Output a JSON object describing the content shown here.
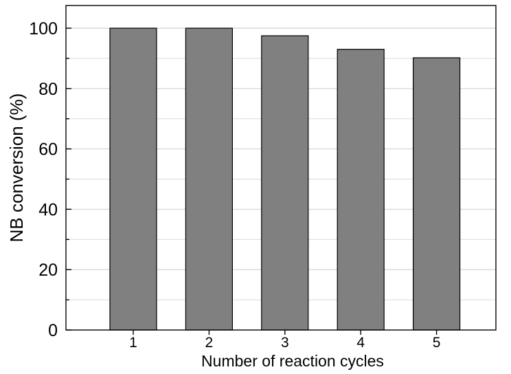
{
  "chart_data": {
    "type": "bar",
    "categories": [
      "1",
      "2",
      "3",
      "4",
      "5"
    ],
    "values": [
      100,
      100,
      97.5,
      93,
      90.2
    ],
    "xlabel": "Number of reaction cycles",
    "ylabel": "NB conversion (%)",
    "ylim": [
      0,
      100
    ],
    "yticks": [
      0,
      20,
      40,
      60,
      80,
      100
    ],
    "grid": true,
    "bar_color": "#808080",
    "grid_color": "#d9d9d9"
  }
}
